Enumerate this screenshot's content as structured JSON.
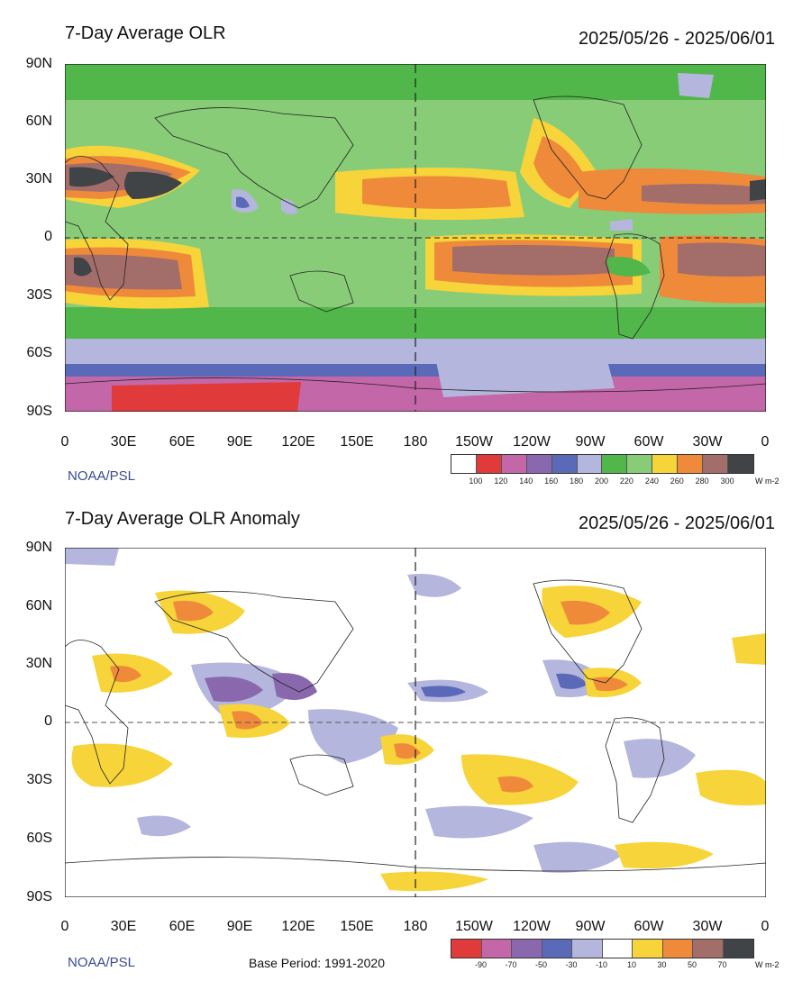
{
  "top": {
    "title": "7-Day Average OLR",
    "dates": "2025/05/26 - 2025/06/01",
    "credit": "NOAA/PSL",
    "units": "W m-2",
    "colorbar": {
      "colors": [
        "#ffffff",
        "#e03a3a",
        "#c367a8",
        "#8a68ad",
        "#5a6ab8",
        "#b4b6dd",
        "#52b74a",
        "#88cc78",
        "#f6d43a",
        "#ee8a3a",
        "#a36d6a",
        "#404447"
      ],
      "ticks": [
        "100",
        "120",
        "140",
        "160",
        "180",
        "200",
        "220",
        "240",
        "260",
        "280",
        "300"
      ]
    }
  },
  "bottom": {
    "title": "7-Day Average OLR Anomaly",
    "dates": "2025/05/26 - 2025/06/01",
    "credit": "NOAA/PSL",
    "base_period": "Base Period: 1991-2020",
    "units": "W m-2",
    "colorbar": {
      "colors": [
        "#e03a3a",
        "#c367a8",
        "#8a68ad",
        "#5a6ab8",
        "#b4b6dd",
        "#ffffff",
        "#f6d43a",
        "#ee8a3a",
        "#a36d6a",
        "#404447"
      ],
      "ticks": [
        "-90",
        "-70",
        "-50",
        "-30",
        "-10",
        "10",
        "30",
        "50",
        "70"
      ]
    }
  },
  "axes": {
    "lat_labels": [
      "90N",
      "60N",
      "30N",
      "0",
      "30S",
      "60S",
      "90S"
    ],
    "lon_labels": [
      "0",
      "30E",
      "60E",
      "90E",
      "120E",
      "150E",
      "180",
      "150W",
      "120W",
      "90W",
      "60W",
      "30W",
      "0"
    ]
  }
}
